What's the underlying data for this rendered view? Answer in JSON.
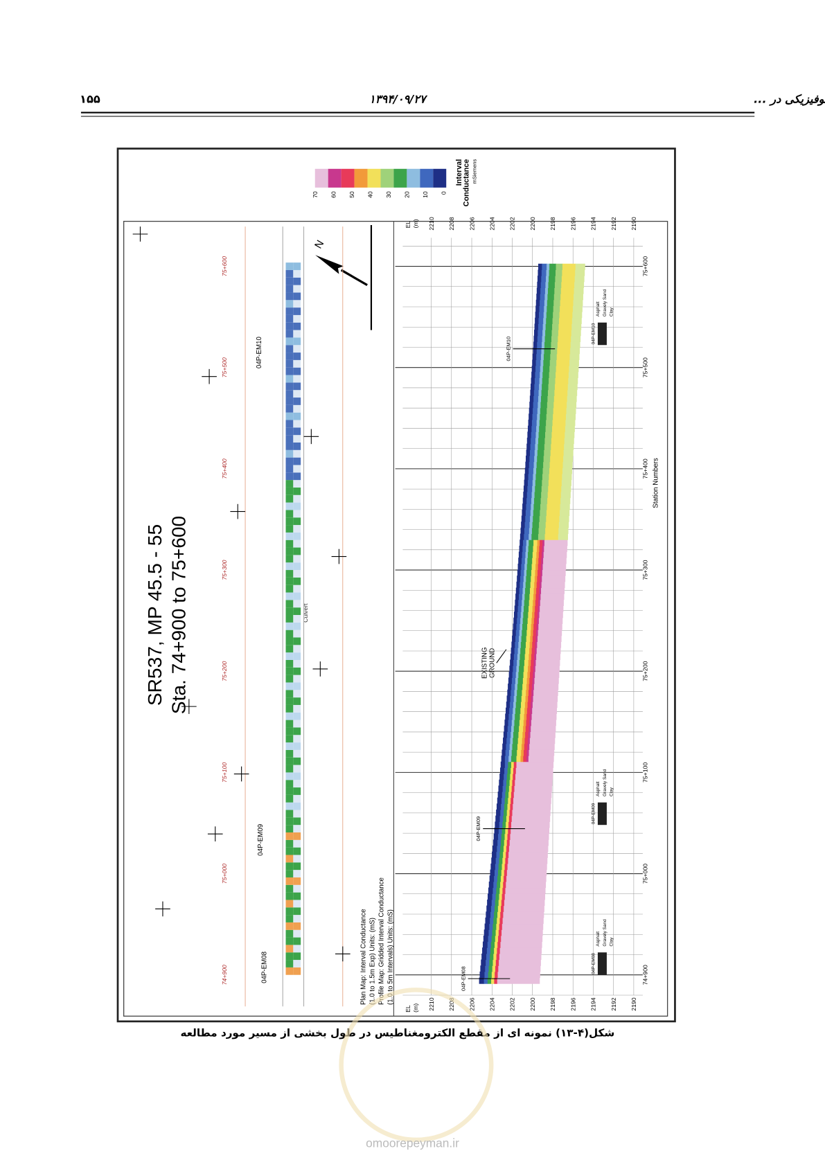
{
  "header": {
    "chapter": "فصل چهارم ـ مثال‌هایی از کاربرد روش‌های ژئوفیزیکی در ...",
    "date": "۱۳۹۴/۰۹/۲۷",
    "page_number": "۱۵۵"
  },
  "figure": {
    "title": [
      "SR537, MP 45.5 - 55",
      "Sta. 74+900 to 75+600"
    ],
    "legend": {
      "title": [
        "Interval",
        "Conductance",
        "mSiemens"
      ],
      "ticks": [
        "70",
        "60",
        "50",
        "40",
        "30",
        "20",
        "10",
        "0"
      ]
    },
    "plan_note": [
      "Plan Map: Interval Conductance",
      "(1.0 to 1.5m Exp) Units: (mS)",
      "Profile Map: Gridded Interval Conductance",
      "(1.0 to 5m Intervals) Units: (mS)"
    ],
    "plan_boreholes": [
      "04P-EM08",
      "04P-EM09",
      "04P-EM10"
    ],
    "culvert": "Culvert",
    "boreholes": [
      "04P-EM08",
      "04P-EM09",
      "04P-EM10"
    ],
    "existing_ground": [
      "EXISTING",
      "GROUND"
    ],
    "el_label": [
      "EL",
      "(m)"
    ],
    "elevations": [
      "2210",
      "2208",
      "2206",
      "2204",
      "2202",
      "2200",
      "2198",
      "2196",
      "2194",
      "2192",
      "2190"
    ],
    "stations": [
      "74+900",
      "75+000",
      "75+100",
      "75+200",
      "75+300",
      "75+400",
      "75+500",
      "75+600"
    ],
    "x_axis_title": "Station Numbers",
    "log_labels": [
      "Asphalt",
      "Gravely Sand",
      "Clay"
    ]
  },
  "caption": "شکل(۴-۱۳)  نمونه ای از مقطع الکترومغناطیس در طول بخشی از مسیر مورد مطالعه",
  "watermark": "omoorepeyman.ir"
}
